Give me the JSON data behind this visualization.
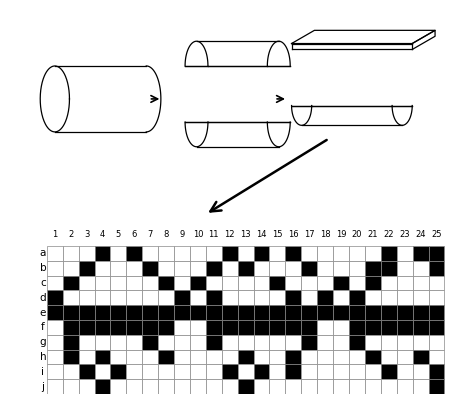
{
  "rows": [
    "a",
    "b",
    "c",
    "d",
    "e",
    "f",
    "g",
    "h",
    "i",
    "j"
  ],
  "cols": [
    1,
    2,
    3,
    4,
    5,
    6,
    7,
    8,
    9,
    10,
    11,
    12,
    13,
    14,
    15,
    16,
    17,
    18,
    19,
    20,
    21,
    22,
    23,
    24,
    25
  ],
  "black_cells": {
    "a": [
      4,
      6,
      12,
      14,
      16,
      22,
      24,
      25
    ],
    "b": [
      3,
      7,
      11,
      13,
      17,
      21,
      22,
      25
    ],
    "c": [
      2,
      8,
      10,
      15,
      19,
      21
    ],
    "d": [
      1,
      9,
      11,
      16,
      18,
      20
    ],
    "e": [
      1,
      2,
      3,
      4,
      5,
      6,
      7,
      8,
      9,
      10,
      11,
      12,
      13,
      14,
      15,
      16,
      17,
      18,
      19,
      20,
      21,
      22,
      23,
      24,
      25
    ],
    "f": [
      2,
      3,
      4,
      5,
      6,
      7,
      8,
      11,
      12,
      13,
      14,
      15,
      16,
      17,
      20,
      21,
      22,
      23,
      24,
      25
    ],
    "g": [
      2,
      7,
      11,
      17,
      20
    ],
    "h": [
      2,
      4,
      8,
      13,
      16,
      21,
      24
    ],
    "i": [
      3,
      5,
      12,
      14,
      16,
      22,
      25
    ],
    "j": [
      4,
      13,
      25
    ]
  },
  "grid_color": "#888888",
  "black_color": "#000000",
  "white_color": "#ffffff",
  "background": "#ffffff",
  "lw": 0.9
}
